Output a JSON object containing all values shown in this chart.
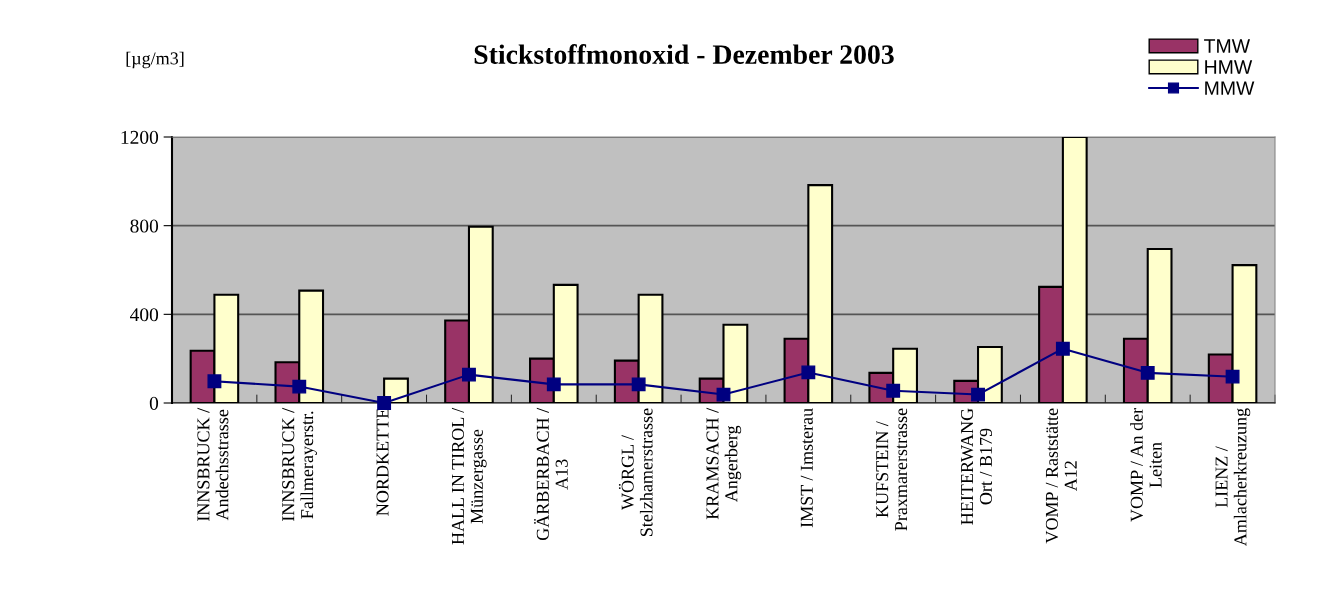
{
  "chart_data": {
    "type": "bar",
    "title": "Stickstoffmonoxid - Dezember 2003",
    "ylabel": "[µg/m3]",
    "categories": [
      "INNSBRUCK /\nAndechsstrasse",
      "INNSBRUCK /\nFallmerayerstr.",
      "NORDKETTE",
      "HALL IN TIROL /\nMünzergasse",
      "GÄRBERBACH /\nA13",
      "WÖRGL /\nStelzhamerstrasse",
      "KRAMSACH /\nAngerberg",
      "IMST / Imsterau",
      "KUFSTEIN /\nPraxmarerstrasse",
      "HEITERWANG\nOrt / B179",
      "VOMP / Raststätte\nA12",
      "VOMP / An der\nLeiten",
      "LIENZ /\nAmlacherkreuzung"
    ],
    "series": [
      {
        "name": "TMW",
        "color": "#993366",
        "values": [
          236,
          184,
          null,
          372,
          200,
          191,
          110,
          290,
          136,
          100,
          524,
          290,
          219
        ]
      },
      {
        "name": "HMW",
        "color": "#ffffcc",
        "values": [
          488,
          507,
          110,
          795,
          533,
          488,
          353,
          983,
          245,
          253,
          1200,
          695,
          622
        ]
      },
      {
        "name": "MMW",
        "type": "line",
        "color": "#000080",
        "values": [
          98,
          74,
          0,
          128,
          84,
          84,
          38,
          138,
          55,
          38,
          245,
          136,
          119
        ]
      }
    ],
    "ylim": [
      0,
      1200
    ],
    "yticks": [
      0,
      400,
      800,
      1200
    ],
    "grid": "y",
    "legend": "top right",
    "marker": "square",
    "line_style": "solid"
  }
}
